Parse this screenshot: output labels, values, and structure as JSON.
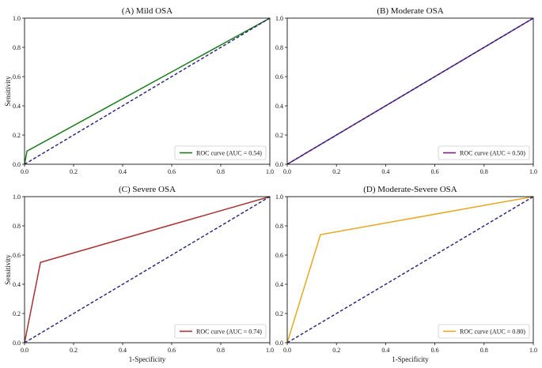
{
  "figure": {
    "xlabel_bottom": "1-Specificity",
    "ylabel_left": "Sensitivity"
  },
  "chart_data": [
    {
      "type": "line",
      "id": "mild",
      "title": "(A) Mild OSA",
      "xlim": [
        0,
        1
      ],
      "ylim": [
        0,
        1
      ],
      "xticks": [
        "0.0",
        "0.2",
        "0.4",
        "0.6",
        "0.8",
        "1.0"
      ],
      "yticks": [
        "0.0",
        "0.2",
        "0.4",
        "0.6",
        "0.8",
        "1.0"
      ],
      "xlabel": "",
      "ylabel": "Sensitivity",
      "legend_position": "bottom-right",
      "series": [
        {
          "name": "ROC curve (AUC = 0.54)",
          "color": "#1a7a1a",
          "style": "solid",
          "x": [
            0,
            0.01,
            1
          ],
          "y": [
            0,
            0.09,
            1
          ]
        },
        {
          "name": "chance",
          "color": "#1f1f7a",
          "style": "dashed",
          "x": [
            0,
            1
          ],
          "y": [
            0,
            1
          ],
          "legend": false
        }
      ]
    },
    {
      "type": "line",
      "id": "moderate",
      "title": "(B) Moderate OSA",
      "xlim": [
        0,
        1
      ],
      "ylim": [
        0,
        1
      ],
      "xticks": [
        "0.0",
        "0.2",
        "0.4",
        "0.6",
        "0.8",
        "1.0"
      ],
      "yticks": [
        "0.0",
        "0.2",
        "0.4",
        "0.6",
        "0.8",
        "1.0"
      ],
      "xlabel": "",
      "ylabel": "",
      "legend_position": "bottom-right",
      "series": [
        {
          "name": "ROC curve (AUC = 0.50)",
          "color": "#7b1f7b",
          "style": "solid",
          "x": [
            0,
            1
          ],
          "y": [
            0,
            1
          ]
        },
        {
          "name": "chance",
          "color": "#1f1f7a",
          "style": "dashed",
          "x": [
            0,
            1
          ],
          "y": [
            0,
            1
          ],
          "legend": false
        }
      ]
    },
    {
      "type": "line",
      "id": "severe",
      "title": "(C) Severe OSA",
      "xlim": [
        0,
        1
      ],
      "ylim": [
        0,
        1
      ],
      "xticks": [
        "0.0",
        "0.2",
        "0.4",
        "0.6",
        "0.8",
        "1.0"
      ],
      "yticks": [
        "0.0",
        "0.2",
        "0.4",
        "0.6",
        "0.8",
        "1.0"
      ],
      "xlabel": "1-Specificity",
      "ylabel": "Sensitivity",
      "legend_position": "bottom-right",
      "series": [
        {
          "name": "ROC curve (AUC = 0.74)",
          "color": "#a83232",
          "style": "solid",
          "x": [
            0,
            0.065,
            1
          ],
          "y": [
            0,
            0.55,
            1
          ]
        },
        {
          "name": "chance",
          "color": "#1f1f7a",
          "style": "dashed",
          "x": [
            0,
            1
          ],
          "y": [
            0,
            1
          ],
          "legend": false
        }
      ]
    },
    {
      "type": "line",
      "id": "modsevere",
      "title": "(D) Moderate-Severe OSA",
      "xlim": [
        0,
        1
      ],
      "ylim": [
        0,
        1
      ],
      "xticks": [
        "0.0",
        "0.2",
        "0.4",
        "0.6",
        "0.8",
        "1.0"
      ],
      "yticks": [
        "0.0",
        "0.2",
        "0.4",
        "0.6",
        "0.8",
        "1.0"
      ],
      "xlabel": "1-Specificity",
      "ylabel": "",
      "legend_position": "bottom-right",
      "series": [
        {
          "name": "ROC curve (AUC = 0.80)",
          "color": "#e6a820",
          "style": "solid",
          "x": [
            0,
            0.135,
            1
          ],
          "y": [
            0,
            0.74,
            1
          ]
        },
        {
          "name": "chance",
          "color": "#1f1f7a",
          "style": "dashed",
          "x": [
            0,
            1
          ],
          "y": [
            0,
            1
          ],
          "legend": false
        }
      ]
    }
  ]
}
